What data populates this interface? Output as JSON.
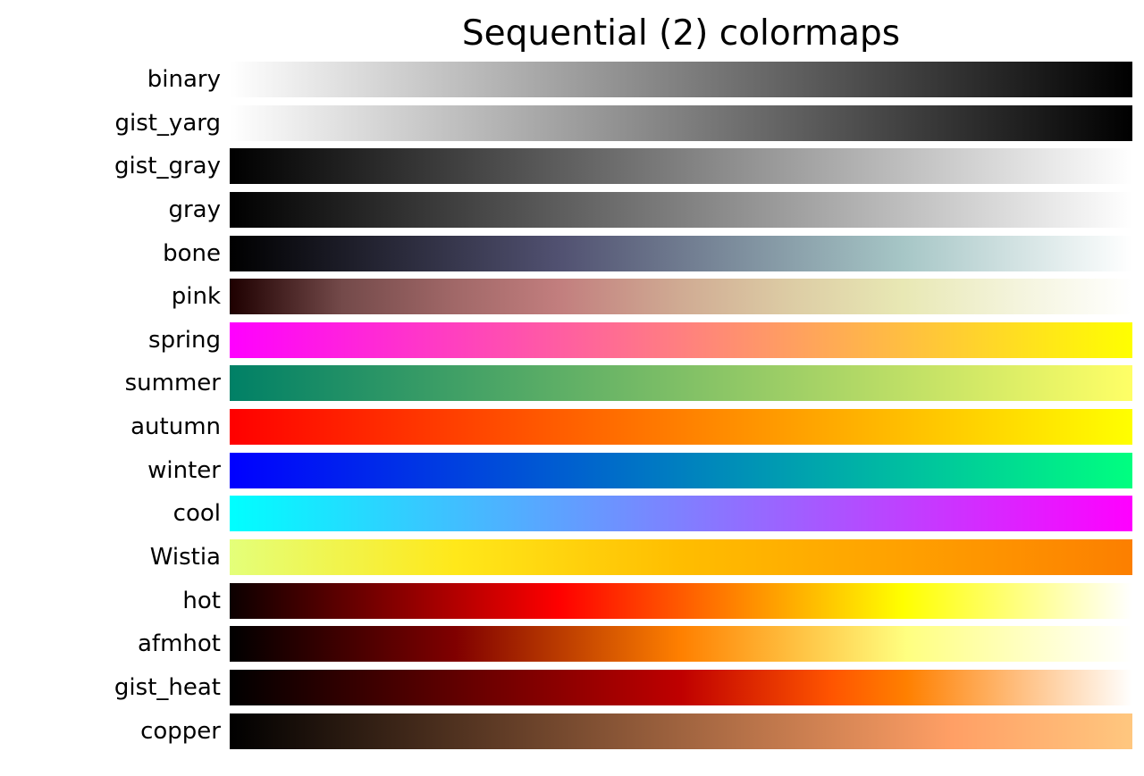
{
  "chart_data": {
    "type": "heatmap",
    "title": "Sequential (2) colormaps",
    "orientation": "horizontal-strips",
    "grid": false,
    "legend": false,
    "strip_value_range": [
      0,
      1
    ],
    "colormaps": [
      {
        "name": "binary",
        "stops": [
          {
            "pos": 0,
            "color": "#ffffff"
          },
          {
            "pos": 1,
            "color": "#000000"
          }
        ]
      },
      {
        "name": "gist_yarg",
        "stops": [
          {
            "pos": 0,
            "color": "#ffffff"
          },
          {
            "pos": 1,
            "color": "#000000"
          }
        ]
      },
      {
        "name": "gist_gray",
        "stops": [
          {
            "pos": 0,
            "color": "#000000"
          },
          {
            "pos": 1,
            "color": "#ffffff"
          }
        ]
      },
      {
        "name": "gray",
        "stops": [
          {
            "pos": 0,
            "color": "#000000"
          },
          {
            "pos": 1,
            "color": "#ffffff"
          }
        ]
      },
      {
        "name": "bone",
        "stops": [
          {
            "pos": 0,
            "color": "#000000"
          },
          {
            "pos": 0.365,
            "color": "#515171"
          },
          {
            "pos": 0.746,
            "color": "#a6c6c6"
          },
          {
            "pos": 1,
            "color": "#ffffff"
          }
        ]
      },
      {
        "name": "pink",
        "stops": [
          {
            "pos": 0,
            "color": "#1e0000"
          },
          {
            "pos": 0.125,
            "color": "#744a4a"
          },
          {
            "pos": 0.25,
            "color": "#a16868"
          },
          {
            "pos": 0.365,
            "color": "#c27e7e"
          },
          {
            "pos": 0.5,
            "color": "#d0ab93"
          },
          {
            "pos": 0.625,
            "color": "#ddcda5"
          },
          {
            "pos": 0.746,
            "color": "#e8e8b4"
          },
          {
            "pos": 0.875,
            "color": "#f4f4dd"
          },
          {
            "pos": 1,
            "color": "#ffffff"
          }
        ]
      },
      {
        "name": "spring",
        "stops": [
          {
            "pos": 0,
            "color": "#ff00ff"
          },
          {
            "pos": 1,
            "color": "#ffff00"
          }
        ]
      },
      {
        "name": "summer",
        "stops": [
          {
            "pos": 0,
            "color": "#008066"
          },
          {
            "pos": 1,
            "color": "#ffff66"
          }
        ]
      },
      {
        "name": "autumn",
        "stops": [
          {
            "pos": 0,
            "color": "#ff0000"
          },
          {
            "pos": 1,
            "color": "#ffff00"
          }
        ]
      },
      {
        "name": "winter",
        "stops": [
          {
            "pos": 0,
            "color": "#0000ff"
          },
          {
            "pos": 1,
            "color": "#00ff80"
          }
        ]
      },
      {
        "name": "cool",
        "stops": [
          {
            "pos": 0,
            "color": "#00ffff"
          },
          {
            "pos": 1,
            "color": "#ff00ff"
          }
        ]
      },
      {
        "name": "Wistia",
        "stops": [
          {
            "pos": 0,
            "color": "#e4ff7a"
          },
          {
            "pos": 0.25,
            "color": "#ffe81a"
          },
          {
            "pos": 0.5,
            "color": "#ffbd00"
          },
          {
            "pos": 0.75,
            "color": "#ffa000"
          },
          {
            "pos": 1,
            "color": "#fc7f00"
          }
        ]
      },
      {
        "name": "hot",
        "stops": [
          {
            "pos": 0,
            "color": "#0b0000"
          },
          {
            "pos": 0.365,
            "color": "#ff0000"
          },
          {
            "pos": 0.746,
            "color": "#ffff00"
          },
          {
            "pos": 1,
            "color": "#ffffff"
          }
        ]
      },
      {
        "name": "afmhot",
        "stops": [
          {
            "pos": 0,
            "color": "#000000"
          },
          {
            "pos": 0.25,
            "color": "#800000"
          },
          {
            "pos": 0.5,
            "color": "#ff8000"
          },
          {
            "pos": 0.75,
            "color": "#ffff80"
          },
          {
            "pos": 1,
            "color": "#ffffff"
          }
        ]
      },
      {
        "name": "gist_heat",
        "stops": [
          {
            "pos": 0,
            "color": "#000000"
          },
          {
            "pos": 0.25,
            "color": "#600000"
          },
          {
            "pos": 0.5,
            "color": "#bf0000"
          },
          {
            "pos": 0.667,
            "color": "#ff5500"
          },
          {
            "pos": 0.75,
            "color": "#ff8000"
          },
          {
            "pos": 0.875,
            "color": "#ffbf80"
          },
          {
            "pos": 1,
            "color": "#ffffff"
          }
        ]
      },
      {
        "name": "copper",
        "stops": [
          {
            "pos": 0,
            "color": "#000000"
          },
          {
            "pos": 0.8,
            "color": "#ff9f65"
          },
          {
            "pos": 1,
            "color": "#ffc77f"
          }
        ]
      }
    ]
  }
}
